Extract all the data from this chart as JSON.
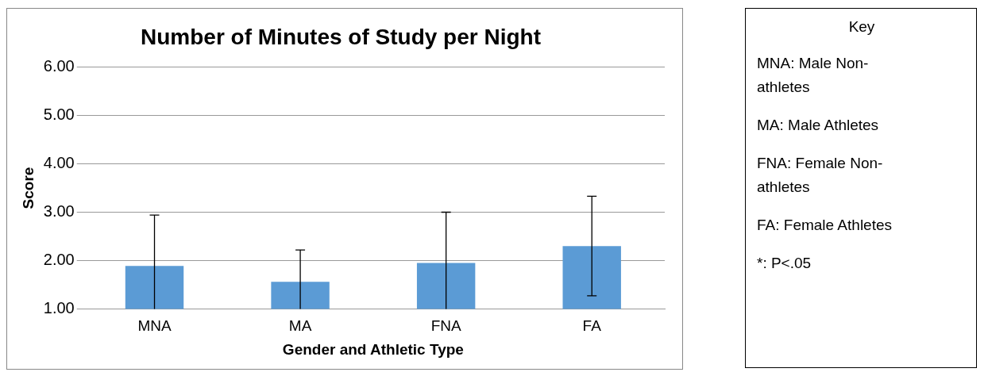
{
  "chart_data": [
    {
      "type": "bar",
      "title": "Number of Minutes of Study per Night",
      "xlabel": "Gender and Athletic Type",
      "ylabel": "Score",
      "categories": [
        "MNA",
        "MA",
        "FNA",
        "FA"
      ],
      "values": [
        1.89,
        1.56,
        1.95,
        2.3
      ],
      "color": "#5b9bd5",
      "errors": [
        [
          1,
          2.94
        ],
        [
          1,
          2.22
        ],
        [
          1,
          3
        ],
        [
          1.27,
          3.33
        ]
      ],
      "ylim": [
        1,
        6
      ],
      "yticks": [
        {
          "value": 1,
          "label": "1.00"
        },
        {
          "value": 2,
          "label": "2.00"
        },
        {
          "value": 3,
          "label": "3.00"
        },
        {
          "value": 4,
          "label": "4.00"
        },
        {
          "value": 5,
          "label": "5.00"
        },
        {
          "value": 6,
          "label": "6.00"
        }
      ],
      "grid": "y",
      "legend": false
    },
    {
      "type": "other",
      "title": "Key",
      "annotations": [
        "MNA: Male Non-athletes",
        "MA: Male Athletes",
        "FNA: Female Non-athletes",
        "FA: Female Athletes",
        "*: P<.05"
      ]
    }
  ]
}
